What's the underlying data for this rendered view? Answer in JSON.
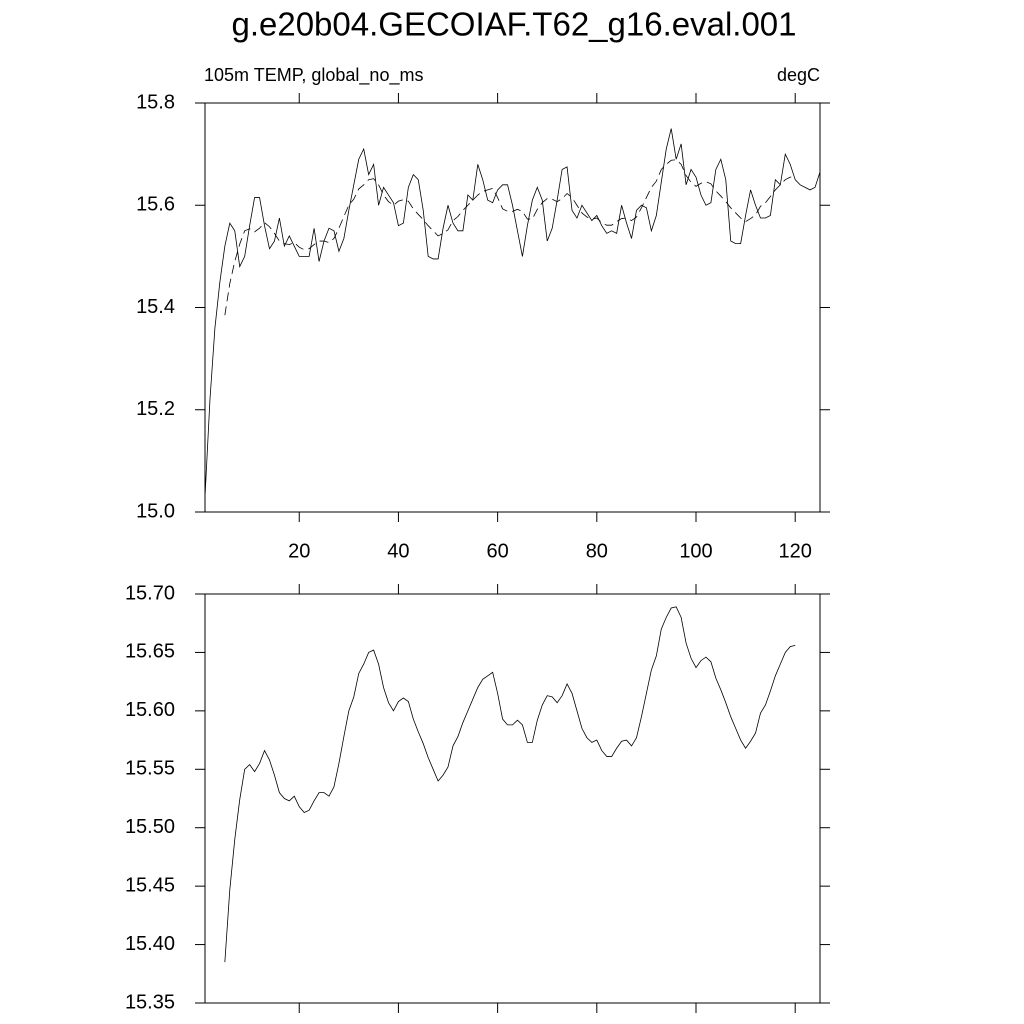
{
  "chart_data": [
    {
      "type": "line",
      "title": "g.e20b04.GECOIAF.T62_g16.eval.001",
      "subtitle_left": "105m TEMP, global_no_ms",
      "subtitle_right": "degC",
      "xlim": [
        1,
        125
      ],
      "xticks": [
        20,
        40,
        60,
        80,
        100,
        120
      ],
      "show_xtick_labels": true,
      "ylim": [
        15,
        15.8
      ],
      "yticks": [
        {
          "value": 15,
          "label": "15.0"
        },
        15.2,
        15.4,
        15.6,
        15.8
      ],
      "series": [
        {
          "color": "#000000",
          "dashed": false,
          "x": [
            1,
            2,
            3,
            4,
            5,
            6,
            7,
            8,
            9,
            10,
            11,
            12,
            13,
            14,
            15,
            16,
            17,
            18,
            19,
            20,
            21,
            22,
            23,
            24,
            25,
            26,
            27,
            28,
            29,
            30,
            31,
            32,
            33,
            34,
            35,
            36,
            37,
            38,
            39,
            40,
            41,
            42,
            43,
            44,
            45,
            46,
            47,
            48,
            49,
            50,
            51,
            52,
            53,
            54,
            55,
            56,
            57,
            58,
            59,
            60,
            61,
            62,
            63,
            64,
            65,
            66,
            67,
            68,
            69,
            70,
            71,
            72,
            73,
            74,
            75,
            76,
            77,
            78,
            79,
            80,
            81,
            82,
            83,
            84,
            85,
            86,
            87,
            88,
            89,
            90,
            91,
            92,
            93,
            94,
            95,
            96,
            97,
            98,
            99,
            100,
            101,
            102,
            103,
            104,
            105,
            106,
            107,
            108,
            109,
            110,
            111,
            112,
            113,
            114,
            115,
            116,
            117,
            118,
            119,
            120,
            121,
            122,
            123,
            124,
            125
          ],
          "values": [
            15.03,
            15.22,
            15.36,
            15.45,
            15.52,
            15.565,
            15.55,
            15.48,
            15.5,
            15.56,
            15.615,
            15.615,
            15.56,
            15.515,
            15.53,
            15.575,
            15.52,
            15.54,
            15.52,
            15.5,
            15.5,
            15.5,
            15.555,
            15.49,
            15.53,
            15.555,
            15.55,
            15.51,
            15.535,
            15.59,
            15.64,
            15.69,
            15.71,
            15.66,
            15.68,
            15.6,
            15.635,
            15.62,
            15.605,
            15.56,
            15.565,
            15.635,
            15.66,
            15.65,
            15.59,
            15.5,
            15.495,
            15.495,
            15.555,
            15.6,
            15.565,
            15.55,
            15.55,
            15.62,
            15.61,
            15.68,
            15.65,
            15.61,
            15.605,
            15.63,
            15.64,
            15.64,
            15.6,
            15.55,
            15.5,
            15.56,
            15.61,
            15.635,
            15.61,
            15.53,
            15.555,
            15.61,
            15.67,
            15.675,
            15.59,
            15.575,
            15.6,
            15.585,
            15.57,
            15.58,
            15.56,
            15.545,
            15.55,
            15.545,
            15.6,
            15.565,
            15.535,
            15.59,
            15.6,
            15.595,
            15.55,
            15.58,
            15.645,
            15.71,
            15.75,
            15.69,
            15.72,
            15.64,
            15.67,
            15.655,
            15.62,
            15.6,
            15.605,
            15.67,
            15.69,
            15.65,
            15.53,
            15.525,
            15.525,
            15.58,
            15.63,
            15.6,
            15.575,
            15.575,
            15.58,
            15.65,
            15.64,
            15.7,
            15.68,
            15.65,
            15.64,
            15.635,
            15.63,
            15.635,
            15.665
          ]
        },
        {
          "color": "#000000",
          "dashed": true,
          "x": [
            5,
            6,
            7,
            8,
            9,
            10,
            11,
            12,
            13,
            14,
            15,
            16,
            17,
            18,
            19,
            20,
            21,
            22,
            23,
            24,
            25,
            26,
            27,
            28,
            29,
            30,
            31,
            32,
            33,
            34,
            35,
            36,
            37,
            38,
            39,
            40,
            41,
            42,
            43,
            44,
            45,
            46,
            47,
            48,
            49,
            50,
            51,
            52,
            53,
            54,
            55,
            56,
            57,
            58,
            59,
            60,
            61,
            62,
            63,
            64,
            65,
            66,
            67,
            68,
            69,
            70,
            71,
            72,
            73,
            74,
            75,
            76,
            77,
            78,
            79,
            80,
            81,
            82,
            83,
            84,
            85,
            86,
            87,
            88,
            89,
            90,
            91,
            92,
            93,
            94,
            95,
            96,
            97,
            98,
            99,
            100,
            101,
            102,
            103,
            104,
            105,
            106,
            107,
            108,
            109,
            110,
            111,
            112,
            113,
            114,
            115,
            116,
            117,
            118,
            119,
            120
          ],
          "values": [
            15.385,
            15.447,
            15.49,
            15.524,
            15.55,
            15.554,
            15.548,
            15.555,
            15.566,
            15.558,
            15.545,
            15.53,
            15.525,
            15.523,
            15.527,
            15.518,
            15.513,
            15.515,
            15.523,
            15.53,
            15.53,
            15.527,
            15.535,
            15.555,
            15.578,
            15.6,
            15.612,
            15.632,
            15.64,
            15.65,
            15.652,
            15.64,
            15.62,
            15.607,
            15.6,
            15.608,
            15.611,
            15.608,
            15.593,
            15.582,
            15.572,
            15.56,
            15.55,
            15.54,
            15.545,
            15.552,
            15.57,
            15.578,
            15.59,
            15.6,
            15.61,
            15.62,
            15.627,
            15.63,
            15.633,
            15.615,
            15.593,
            15.588,
            15.588,
            15.592,
            15.588,
            15.573,
            15.573,
            15.592,
            15.605,
            15.613,
            15.612,
            15.607,
            15.613,
            15.623,
            15.615,
            15.6,
            15.585,
            15.577,
            15.573,
            15.575,
            15.566,
            15.561,
            15.561,
            15.568,
            15.574,
            15.575,
            15.57,
            15.577,
            15.595,
            15.615,
            15.635,
            15.647,
            15.67,
            15.68,
            15.688,
            15.689,
            15.68,
            15.658,
            15.645,
            15.637,
            15.643,
            15.646,
            15.642,
            15.628,
            15.618,
            15.607,
            15.595,
            15.585,
            15.575,
            15.568,
            15.574,
            15.581,
            15.598,
            15.605,
            15.617,
            15.63,
            15.64,
            15.65,
            15.655,
            15.656
          ]
        }
      ]
    },
    {
      "type": "line",
      "xlim": [
        1,
        125
      ],
      "xticks": [
        20,
        40,
        60,
        80,
        100,
        120
      ],
      "show_xtick_labels": false,
      "ylim": [
        15.35,
        15.7
      ],
      "yticks": [
        15.35,
        {
          "value": 15.4,
          "label": "15.40"
        },
        15.45,
        {
          "value": 15.5,
          "label": "15.50"
        },
        15.55,
        {
          "value": 15.6,
          "label": "15.60"
        },
        15.65,
        {
          "value": 15.7,
          "label": "15.70"
        }
      ],
      "series": [
        {
          "color": "#000000",
          "dashed": false,
          "x": [
            5,
            6,
            7,
            8,
            9,
            10,
            11,
            12,
            13,
            14,
            15,
            16,
            17,
            18,
            19,
            20,
            21,
            22,
            23,
            24,
            25,
            26,
            27,
            28,
            29,
            30,
            31,
            32,
            33,
            34,
            35,
            36,
            37,
            38,
            39,
            40,
            41,
            42,
            43,
            44,
            45,
            46,
            47,
            48,
            49,
            50,
            51,
            52,
            53,
            54,
            55,
            56,
            57,
            58,
            59,
            60,
            61,
            62,
            63,
            64,
            65,
            66,
            67,
            68,
            69,
            70,
            71,
            72,
            73,
            74,
            75,
            76,
            77,
            78,
            79,
            80,
            81,
            82,
            83,
            84,
            85,
            86,
            87,
            88,
            89,
            90,
            91,
            92,
            93,
            94,
            95,
            96,
            97,
            98,
            99,
            100,
            101,
            102,
            103,
            104,
            105,
            106,
            107,
            108,
            109,
            110,
            111,
            112,
            113,
            114,
            115,
            116,
            117,
            118,
            119,
            120
          ],
          "values": [
            15.385,
            15.447,
            15.49,
            15.524,
            15.55,
            15.554,
            15.548,
            15.555,
            15.566,
            15.558,
            15.545,
            15.53,
            15.525,
            15.523,
            15.527,
            15.518,
            15.513,
            15.515,
            15.523,
            15.53,
            15.53,
            15.527,
            15.535,
            15.555,
            15.578,
            15.6,
            15.612,
            15.632,
            15.64,
            15.65,
            15.652,
            15.64,
            15.62,
            15.607,
            15.6,
            15.608,
            15.611,
            15.608,
            15.593,
            15.582,
            15.572,
            15.56,
            15.55,
            15.54,
            15.545,
            15.552,
            15.57,
            15.578,
            15.59,
            15.6,
            15.61,
            15.62,
            15.627,
            15.63,
            15.633,
            15.615,
            15.593,
            15.588,
            15.588,
            15.592,
            15.588,
            15.573,
            15.573,
            15.592,
            15.605,
            15.613,
            15.612,
            15.607,
            15.613,
            15.623,
            15.615,
            15.6,
            15.585,
            15.577,
            15.573,
            15.575,
            15.566,
            15.561,
            15.561,
            15.568,
            15.574,
            15.575,
            15.57,
            15.577,
            15.595,
            15.615,
            15.635,
            15.647,
            15.67,
            15.68,
            15.688,
            15.689,
            15.68,
            15.658,
            15.645,
            15.637,
            15.643,
            15.646,
            15.642,
            15.628,
            15.618,
            15.607,
            15.595,
            15.585,
            15.575,
            15.568,
            15.574,
            15.581,
            15.598,
            15.605,
            15.617,
            15.63,
            15.64,
            15.65,
            15.655,
            15.656
          ]
        }
      ]
    }
  ]
}
